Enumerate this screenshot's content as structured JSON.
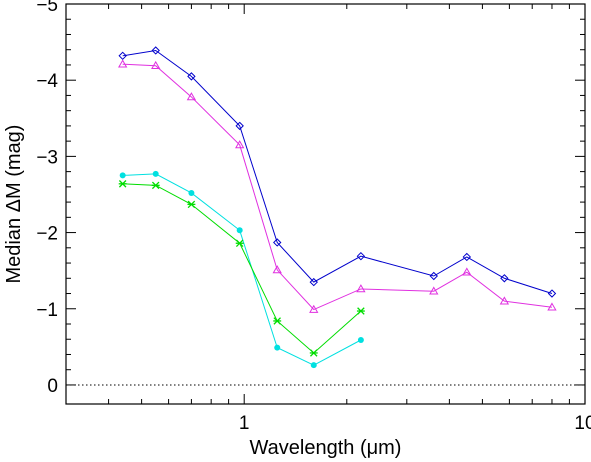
{
  "chart_data": {
    "type": "line",
    "title": "",
    "xlabel": "Wavelength (μm)",
    "ylabel": "Median ΔM (mag)",
    "x_scale": "log",
    "xlim": [
      0.3,
      10
    ],
    "ylim": [
      0.25,
      -5
    ],
    "y_inverted": true,
    "grid": false,
    "legend": "none",
    "x_tick_labels": [
      "1",
      "10"
    ],
    "y_tick_labels": [
      "−5",
      "−4",
      "−3",
      "−2",
      "−1",
      "0"
    ],
    "reference_line": {
      "y": 0,
      "style": "dotted",
      "color": "#000000"
    },
    "series": [
      {
        "color": "#0000cc",
        "marker": "diamond",
        "x": [
          0.44,
          0.55,
          0.7,
          0.97,
          1.25,
          1.6,
          2.2,
          3.6,
          4.5,
          5.8,
          8.0
        ],
        "y": [
          -4.32,
          -4.39,
          -4.05,
          -3.4,
          -1.87,
          -1.35,
          -1.69,
          -1.43,
          -1.68,
          -1.4,
          -1.2
        ]
      },
      {
        "color": "#e030e0",
        "marker": "triangle",
        "x": [
          0.44,
          0.55,
          0.7,
          0.97,
          1.25,
          1.6,
          2.2,
          3.6,
          4.5,
          5.8,
          8.0
        ],
        "y": [
          -4.21,
          -4.19,
          -3.78,
          -3.15,
          -1.51,
          -0.99,
          -1.26,
          -1.23,
          -1.48,
          -1.1,
          -1.02
        ]
      },
      {
        "color": "#00e0e0",
        "marker": "dot",
        "x": [
          0.44,
          0.55,
          0.7,
          0.97,
          1.25,
          1.6,
          2.2
        ],
        "y": [
          -2.75,
          -2.77,
          -2.52,
          -2.03,
          -0.49,
          -0.26,
          -0.59
        ]
      },
      {
        "color": "#00dd00",
        "marker": "asterisk",
        "x": [
          0.44,
          0.55,
          0.7,
          0.97,
          1.25,
          1.6,
          2.2
        ],
        "y": [
          -2.64,
          -2.62,
          -2.37,
          -1.86,
          -0.84,
          -0.42,
          -0.97
        ]
      }
    ]
  }
}
